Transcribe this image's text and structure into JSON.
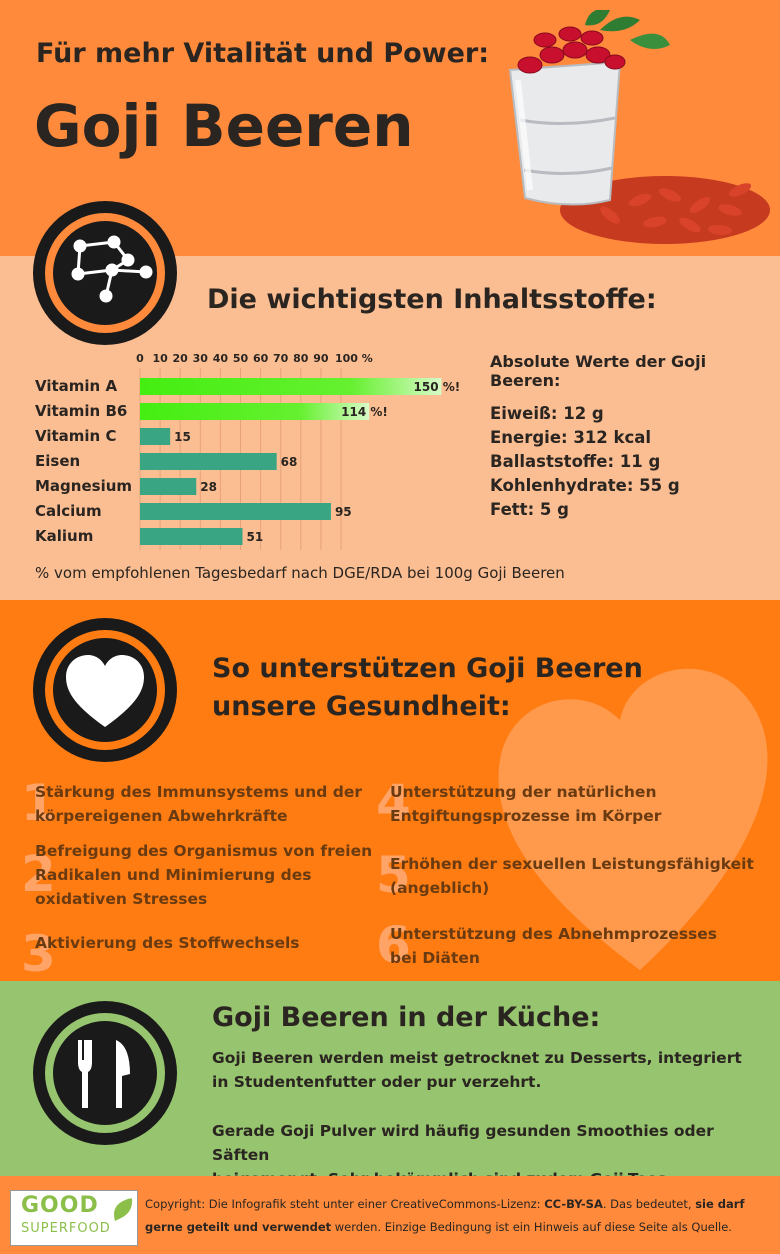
{
  "header": {
    "subtitle": "Für mehr Vitalität und Power:",
    "title": "Goji Beeren"
  },
  "nutrients": {
    "heading": "Die wichtigsten Inhaltsstoffe:",
    "absolute_title": "Absolute Werte der Goji Beeren:",
    "absolute_values": [
      "Eiweiß: 12 g",
      "Energie: 312 kcal",
      "Ballaststoffe: 11 g",
      "Kohlenhydrate: 55 g",
      "Fett: 5 g"
    ],
    "note": "% vom empfohlenen Tagesbedarf nach DGE/RDA bei 100g Goji Beeren"
  },
  "chart_data": {
    "type": "bar",
    "orientation": "horizontal",
    "categories": [
      "Vitamin A",
      "Vitamin B6",
      "Vitamin C",
      "Eisen",
      "Magnesium",
      "Calcium",
      "Kalium"
    ],
    "values": [
      150,
      114,
      15,
      68,
      28,
      95,
      51
    ],
    "value_labels": [
      "150 %!",
      "114 %!",
      "15",
      "68",
      "28",
      "95",
      "51"
    ],
    "x_ticks": [
      "0",
      "10",
      "20",
      "30",
      "40",
      "50",
      "60",
      "70",
      "80",
      "90",
      "100 %"
    ],
    "xlim": [
      0,
      100
    ],
    "grid": true,
    "colors": {
      "normal": "#3aa583",
      "exceed_start": "#44ee11",
      "exceed_end": "#c8f7b0"
    }
  },
  "health": {
    "heading_line1": "So unterstützen Goji Beeren",
    "heading_line2": "unsere Gesundheit:",
    "benefits": [
      {
        "num": "1",
        "lines": [
          "Stärkung des Immunsystems und der",
          "körpereigenen Abwehrkräfte"
        ]
      },
      {
        "num": "2",
        "lines": [
          "Befreigung des Organismus von freien",
          "Radikalen und Minimierung des",
          "oxidativen Stresses"
        ]
      },
      {
        "num": "3",
        "lines": [
          "Aktivierung des Stoffwechsels"
        ]
      },
      {
        "num": "4",
        "lines": [
          "Unterstützung der natürlichen",
          "Entgiftungsprozesse im Körper"
        ]
      },
      {
        "num": "5",
        "lines": [
          "Erhöhen der sexuellen Leistungsfähigkeit",
          "(angeblich)"
        ]
      },
      {
        "num": "6",
        "lines": [
          "Unterstützung des Abnehmprozesses",
          "bei Diäten"
        ]
      }
    ]
  },
  "kitchen": {
    "heading": "Goji Beeren in der Küche:",
    "p1_line1": "Goji Beeren werden meist getrocknet zu Desserts, integriert",
    "p1_line2": "in Studentenfutter oder pur verzehrt.",
    "p2_line1": "Gerade Goji Pulver wird häufig gesunden Smoothies oder Säften",
    "p2_line2": "beigemengt. Sehr bekömmlich sind zudem Goji-Tees."
  },
  "footer": {
    "logo_good": "GOOD",
    "logo_superfood": "SUPERFOOD",
    "copyright_a": "Copyright: Die Infografik steht unter einer CreativeCommons-Lizenz: ",
    "copyright_b": "CC-BY-SA",
    "copyright_c": ". Das bedeutet, ",
    "copyright_d": "sie darf gerne geteilt und verwendet",
    "copyright_e": " werden. Einzige Bedingung ist ein Hinweis auf diese Seite als Quelle."
  },
  "icons": [
    "constellation-icon",
    "heart-icon",
    "cutlery-icon",
    "goji-bucket-image",
    "leaf-icon"
  ]
}
